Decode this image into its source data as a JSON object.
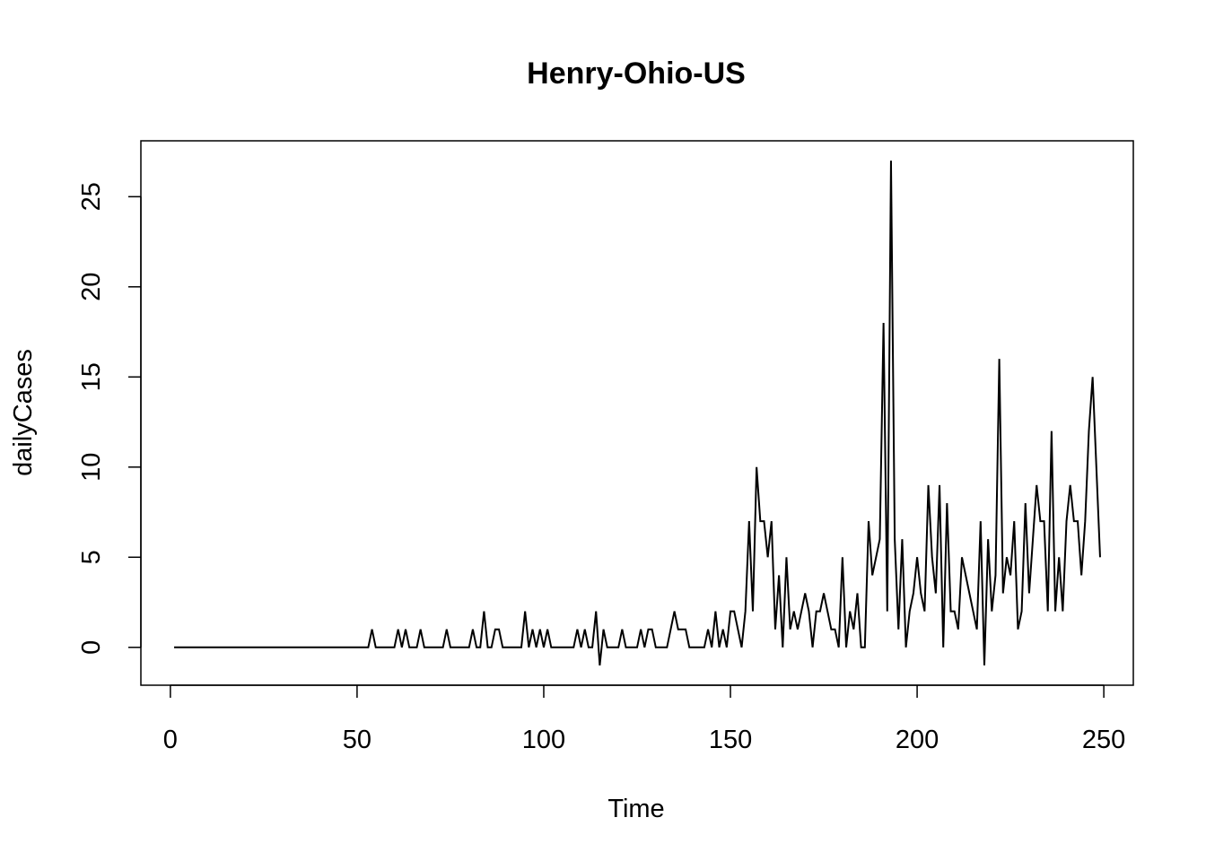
{
  "chart_data": {
    "type": "line",
    "title": "Henry-Ohio-US",
    "xlabel": "Time",
    "ylabel": "dailyCases",
    "xlim": [
      -7.9,
      257.9
    ],
    "ylim": [
      -2.1,
      28.1
    ],
    "xticks": [
      0,
      50,
      100,
      150,
      200,
      250
    ],
    "yticks": [
      0,
      5,
      10,
      15,
      20,
      25
    ],
    "grid": false,
    "legend": "none",
    "x_start": 1,
    "series": [
      {
        "color": "#000000",
        "values": [
          0,
          0,
          0,
          0,
          0,
          0,
          0,
          0,
          0,
          0,
          0,
          0,
          0,
          0,
          0,
          0,
          0,
          0,
          0,
          0,
          0,
          0,
          0,
          0,
          0,
          0,
          0,
          0,
          0,
          0,
          0,
          0,
          0,
          0,
          0,
          0,
          0,
          0,
          0,
          0,
          0,
          0,
          0,
          0,
          0,
          0,
          0,
          0,
          0,
          0,
          0,
          0,
          0,
          1,
          0,
          0,
          0,
          0,
          0,
          0,
          1,
          0,
          1,
          0,
          0,
          0,
          1,
          0,
          0,
          0,
          0,
          0,
          0,
          1,
          0,
          0,
          0,
          0,
          0,
          0,
          1,
          0,
          0,
          2,
          0,
          0,
          1,
          1,
          0,
          0,
          0,
          0,
          0,
          0,
          2,
          0,
          1,
          0,
          1,
          0,
          1,
          0,
          0,
          0,
          0,
          0,
          0,
          0,
          1,
          0,
          1,
          0,
          0,
          2,
          -1,
          1,
          0,
          0,
          0,
          0,
          1,
          0,
          0,
          0,
          0,
          1,
          0,
          1,
          1,
          0,
          0,
          0,
          0,
          1,
          2,
          1,
          1,
          1,
          0,
          0,
          0,
          0,
          0,
          1,
          0,
          2,
          0,
          1,
          0,
          2,
          2,
          1,
          0,
          2,
          7,
          2,
          10,
          7,
          7,
          5,
          7,
          1,
          4,
          0,
          5,
          1,
          2,
          1,
          2,
          3,
          2,
          0,
          2,
          2,
          3,
          2,
          1,
          1,
          0,
          5,
          0,
          2,
          1,
          3,
          0,
          0,
          7,
          4,
          5,
          6,
          18,
          2,
          27,
          6,
          1,
          6,
          0,
          2,
          3,
          5,
          3,
          2,
          9,
          5,
          3,
          9,
          0,
          8,
          2,
          2,
          1,
          5,
          4,
          3,
          2,
          1,
          7,
          -1,
          6,
          2,
          4,
          16,
          3,
          5,
          4,
          7,
          1,
          2,
          8,
          3,
          6,
          9,
          7,
          7,
          2,
          12,
          2,
          5,
          2,
          7,
          9,
          7,
          7,
          4,
          7,
          12,
          15,
          10,
          5
        ]
      }
    ]
  }
}
